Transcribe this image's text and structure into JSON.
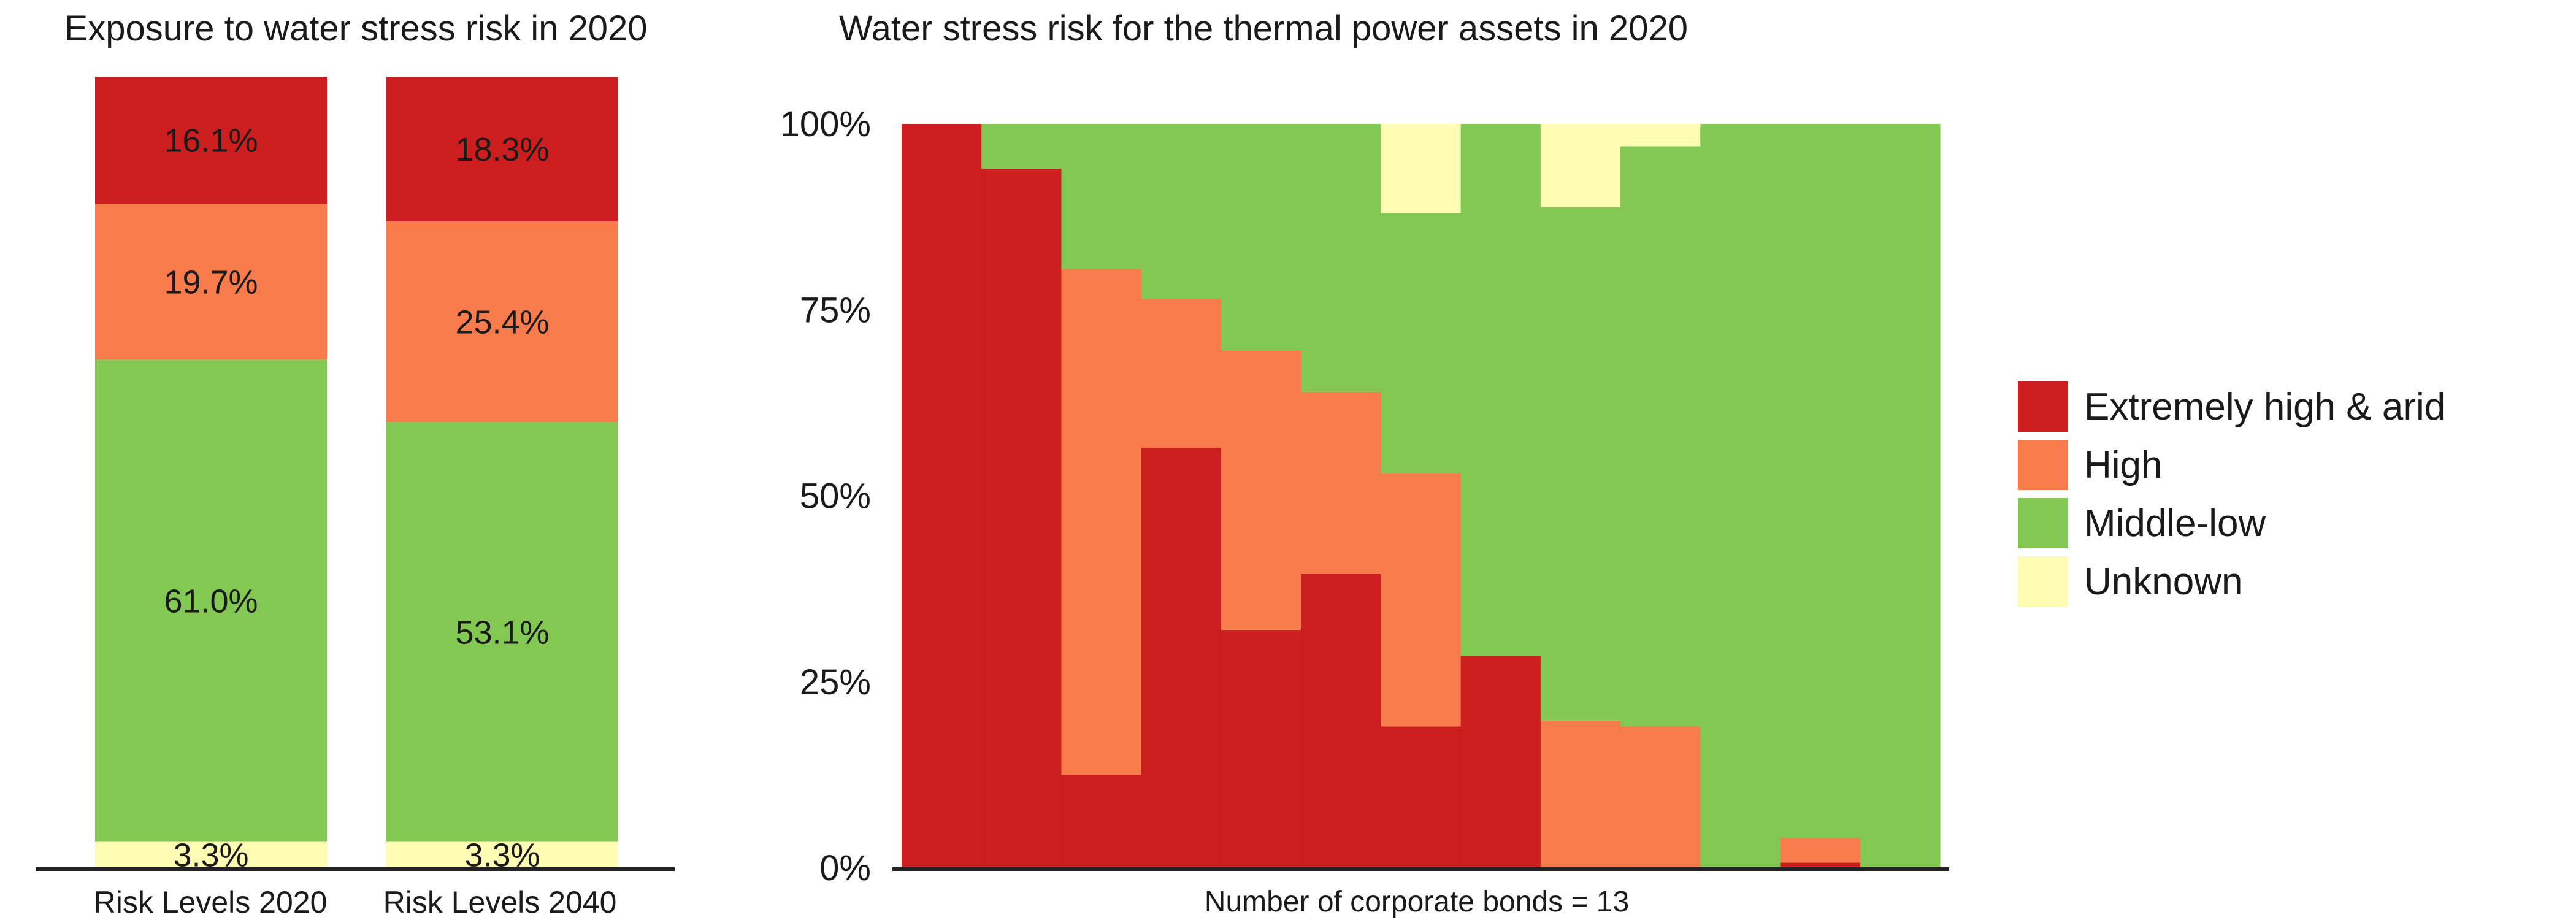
{
  "colors": {
    "extreme": "#CC1D1F",
    "high": "#F87C4B",
    "middle_low": "#82C852",
    "unknown": "#FFFCB4",
    "axis": "#222222"
  },
  "chart_data": [
    {
      "type": "bar",
      "stacked": true,
      "title": "Exposure to water stress risk in 2020",
      "categories": [
        "Risk Levels 2020",
        "Risk Levels 2040"
      ],
      "series": [
        {
          "name": "Unknown",
          "color_key": "unknown",
          "values": [
            3.3,
            3.3
          ],
          "labels": [
            "3.3%",
            "3.3%"
          ]
        },
        {
          "name": "Middle-low",
          "color_key": "middle_low",
          "values": [
            61.0,
            53.1
          ],
          "labels": [
            "61.0%",
            "53.1%"
          ]
        },
        {
          "name": "High",
          "color_key": "high",
          "values": [
            19.7,
            25.4
          ],
          "labels": [
            "19.7%",
            "25.4%"
          ]
        },
        {
          "name": "Extremely high & arid",
          "color_key": "extreme",
          "values": [
            16.1,
            18.3
          ],
          "labels": [
            "16.1%",
            "18.3%"
          ]
        }
      ],
      "ylim": [
        0,
        100
      ]
    },
    {
      "type": "bar",
      "stacked": true,
      "title": "Water stress risk for the thermal power assets in 2020",
      "xlabel": "Number of corporate bonds = 13",
      "ylim": [
        0,
        100
      ],
      "yticks": [
        "0%",
        "25%",
        "50%",
        "75%",
        "100%"
      ],
      "grid": false,
      "legend_position": "right",
      "legend": [
        {
          "name": "Extremely high & arid",
          "color_key": "extreme"
        },
        {
          "name": "High",
          "color_key": "high"
        },
        {
          "name": "Middle-low",
          "color_key": "middle_low"
        },
        {
          "name": "Unknown",
          "color_key": "unknown"
        }
      ],
      "series": [
        {
          "name": "Extremely high & arid",
          "color_key": "extreme",
          "values": [
            100,
            94,
            12.5,
            56.5,
            32,
            39.5,
            19,
            28.5,
            0,
            0,
            0,
            0.7,
            0
          ]
        },
        {
          "name": "High",
          "color_key": "high",
          "values": [
            0,
            0,
            68,
            20,
            37.5,
            24.5,
            34,
            0,
            19.8,
            19,
            0,
            3.3,
            0
          ]
        },
        {
          "name": "Middle-low",
          "color_key": "middle_low",
          "values": [
            0,
            6,
            19.5,
            23.5,
            30.5,
            36,
            35,
            71.5,
            69,
            78,
            100,
            96,
            100
          ]
        },
        {
          "name": "Unknown",
          "color_key": "unknown",
          "values": [
            0,
            0,
            0,
            0,
            0,
            0,
            12,
            0,
            11.2,
            3,
            0,
            0,
            0
          ]
        }
      ]
    }
  ]
}
